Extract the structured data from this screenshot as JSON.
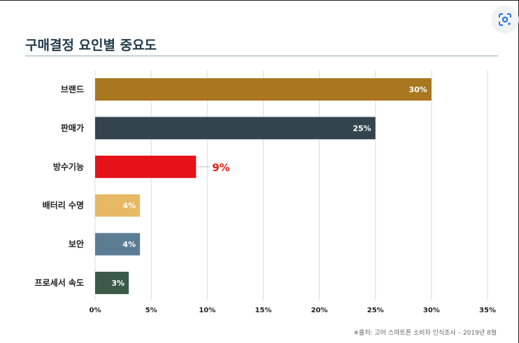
{
  "chart_data": {
    "type": "bar",
    "orientation": "horizontal",
    "title": "구매결정 요인별 중요도",
    "categories": [
      "브랜드",
      "판매가",
      "방수기능",
      "배터리 수명",
      "보안",
      "프로세서 속도"
    ],
    "values": [
      30,
      25,
      9,
      4,
      4,
      3
    ],
    "value_labels": [
      "30%",
      "25%",
      "9%",
      "4%",
      "4%",
      "3%"
    ],
    "colors": [
      "#a8771f",
      "#34444f",
      "#e5121a",
      "#e8b964",
      "#5c7c94",
      "#3b5a48"
    ],
    "x_ticks": [
      0,
      5,
      10,
      15,
      20,
      25,
      30,
      35
    ],
    "x_tick_labels": [
      "0%",
      "5%",
      "10%",
      "15%",
      "20%",
      "25%",
      "30%",
      "35%"
    ],
    "xlim": [
      0,
      35
    ],
    "grid": "vertical",
    "highlight_index": 2,
    "source": "※출처: 고어 스마트폰 소비자 인식조사 – 2019년 8월"
  },
  "ui": {
    "lens_icon": "lens-icon"
  }
}
